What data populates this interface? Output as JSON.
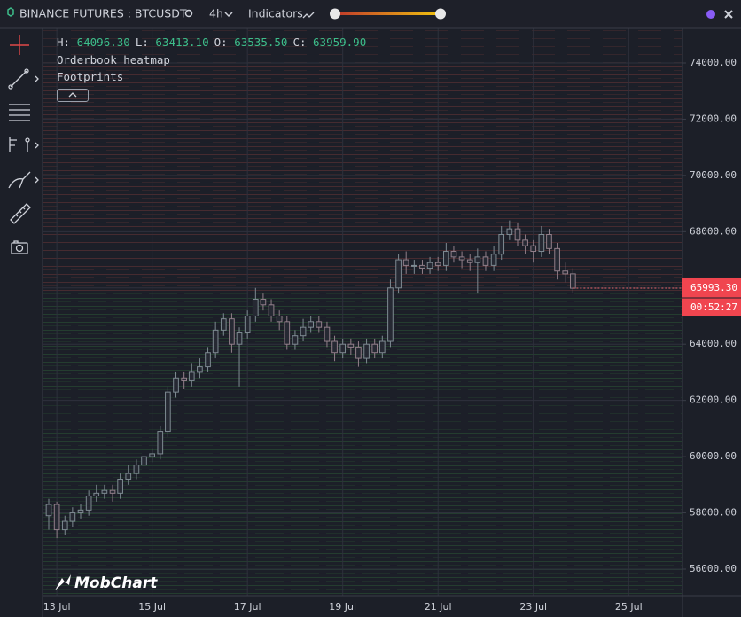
{
  "toolbar": {
    "symbol": "BINANCE FUTURES : BTCUSDT",
    "interval": "4h",
    "indicators": "Indicators"
  },
  "header": {
    "labels": [
      "H:",
      "L:",
      "O:",
      "C:"
    ],
    "values": [
      "64096.30",
      "63413.10",
      "63535.50",
      "63959.90"
    ],
    "overlays": [
      "Orderbook heatmap",
      "Footprints"
    ]
  },
  "logo": "MobChart",
  "chart_data": {
    "type": "candlestick",
    "x": [
      12.83,
      13,
      13.17,
      13.33,
      13.5,
      13.67,
      13.83,
      14,
      14.17,
      14.33,
      14.5,
      14.67,
      14.83,
      15,
      15.17,
      15.33,
      15.5,
      15.67,
      15.83,
      16,
      16.17,
      16.33,
      16.5,
      16.67,
      16.83,
      17,
      17.17,
      17.33,
      17.5,
      17.67,
      17.83,
      18,
      18.17,
      18.33,
      18.5,
      18.67,
      18.83,
      19,
      19.17,
      19.33,
      19.5,
      19.67,
      19.83,
      20,
      20.17,
      20.33,
      20.5,
      20.67,
      20.83,
      21,
      21.17,
      21.33,
      21.5,
      21.67,
      21.83,
      22,
      22.17,
      22.33,
      22.5,
      22.67,
      22.83,
      23,
      23.17,
      23.33,
      23.5,
      23.67,
      23.83
    ],
    "open": [
      57900,
      58300,
      57400,
      57700,
      58000,
      58100,
      58600,
      58700,
      58800,
      58700,
      59200,
      59400,
      59700,
      60000,
      60100,
      60900,
      62300,
      62800,
      62700,
      63000,
      63200,
      63700,
      64500,
      64900,
      64000,
      64400,
      65000,
      65600,
      65400,
      65000,
      64800,
      64000,
      64300,
      64600,
      64800,
      64600,
      64100,
      63700,
      64000,
      63900,
      63500,
      64000,
      63700,
      64100,
      66000,
      67000,
      66800,
      66800,
      66700,
      66900,
      66800,
      67300,
      67100,
      67000,
      66900,
      67100,
      66800,
      67200,
      67900,
      68100,
      67700,
      67500,
      67300,
      67900,
      67400,
      66600,
      66500
    ],
    "high": [
      58500,
      58400,
      57900,
      58200,
      58300,
      58800,
      59000,
      59000,
      59000,
      59400,
      59700,
      59900,
      60200,
      60300,
      61100,
      62500,
      63000,
      63000,
      63300,
      63500,
      63900,
      64800,
      65100,
      65100,
      64600,
      65200,
      66000,
      65800,
      65600,
      65200,
      65000,
      64500,
      64900,
      65000,
      65000,
      64800,
      64300,
      64200,
      64200,
      64100,
      64200,
      64200,
      64300,
      66300,
      67200,
      67300,
      67000,
      67000,
      67100,
      67100,
      67600,
      67500,
      67300,
      67200,
      67400,
      67300,
      67500,
      68200,
      68400,
      68300,
      67900,
      67700,
      68200,
      68100,
      67600,
      66900,
      66700
    ],
    "low": [
      57400,
      57100,
      57200,
      57500,
      57800,
      57900,
      58400,
      58500,
      58400,
      58500,
      59000,
      59200,
      59500,
      59800,
      59900,
      60700,
      62100,
      62400,
      62500,
      62800,
      63000,
      63500,
      64300,
      63700,
      62500,
      64200,
      64800,
      65200,
      64800,
      64500,
      63800,
      63800,
      64100,
      64400,
      64400,
      63900,
      63400,
      63500,
      63600,
      63200,
      63300,
      63500,
      63500,
      63900,
      65800,
      66500,
      66500,
      66500,
      66500,
      66600,
      66600,
      66900,
      66700,
      66600,
      65800,
      66600,
      66600,
      67000,
      67700,
      67500,
      67200,
      66900,
      67100,
      67200,
      66300,
      66200,
      65800
    ],
    "close": [
      58300,
      57400,
      57700,
      58000,
      58100,
      58600,
      58700,
      58800,
      58700,
      59200,
      59400,
      59700,
      60000,
      60100,
      60900,
      62300,
      62800,
      62700,
      63000,
      63200,
      63700,
      64500,
      64900,
      64000,
      64400,
      65000,
      65600,
      65400,
      65000,
      64800,
      64000,
      64300,
      64600,
      64800,
      64600,
      64100,
      63700,
      64000,
      63900,
      63500,
      64000,
      63700,
      64100,
      66000,
      67000,
      66800,
      66800,
      66700,
      66900,
      66800,
      67300,
      67100,
      67000,
      66900,
      67100,
      66800,
      67200,
      67900,
      68100,
      67700,
      67500,
      67300,
      67900,
      67400,
      66600,
      66500,
      65990
    ],
    "up_color": "#7e8a92",
    "down_color": "#927f8a",
    "xlim": [
      12.7,
      26.13
    ],
    "xticks": [
      {
        "value": 13,
        "label": "13 Jul"
      },
      {
        "value": 15,
        "label": "15 Jul"
      },
      {
        "value": 17,
        "label": "17 Jul"
      },
      {
        "value": 19,
        "label": "19 Jul"
      },
      {
        "value": 21,
        "label": "21 Jul"
      },
      {
        "value": 23,
        "label": "23 Jul"
      },
      {
        "value": 25,
        "label": "25 Jul"
      }
    ],
    "ylim": [
      55054,
      75229
    ],
    "yticks": [
      {
        "value": 56000,
        "label": "56000.00"
      },
      {
        "value": 58000,
        "label": "58000.00"
      },
      {
        "value": 60000,
        "label": "60000.00"
      },
      {
        "value": 62000,
        "label": "62000.00"
      },
      {
        "value": 64000,
        "label": "64000.00"
      },
      {
        "value": 66000,
        "label": "66000.00"
      },
      {
        "value": 68000,
        "label": "68000.00"
      },
      {
        "value": 70000,
        "label": "70000.00"
      },
      {
        "value": 72000,
        "label": "72000.00"
      },
      {
        "value": 74000,
        "label": "74000.00"
      }
    ],
    "grid": true,
    "last_price": {
      "value": 65993.3,
      "label": "65993.30"
    },
    "countdown": "00:52:27"
  }
}
